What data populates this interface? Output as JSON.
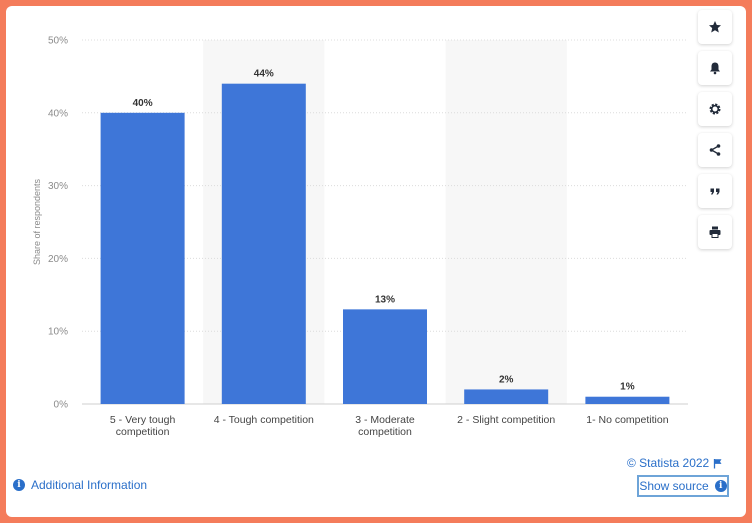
{
  "chart_data": {
    "type": "bar",
    "categories": [
      "5 - Very tough competition",
      "4 - Tough competition",
      "3 - Moderate competition",
      "2 - Slight competition",
      "1- No competition"
    ],
    "category_lines": [
      [
        "5 - Very tough",
        "competition"
      ],
      [
        "4 - Tough competition"
      ],
      [
        "3 - Moderate",
        "competition"
      ],
      [
        "2 - Slight competition"
      ],
      [
        "1- No competition"
      ]
    ],
    "values": [
      40,
      44,
      13,
      2,
      1
    ],
    "data_labels": [
      "40%",
      "44%",
      "13%",
      "2%",
      "1%"
    ],
    "ylabel": "Share of respondents",
    "yticks": [
      0,
      10,
      20,
      30,
      40,
      50
    ],
    "ytick_labels": [
      "0%",
      "10%",
      "20%",
      "30%",
      "40%",
      "50%"
    ],
    "ylim": [
      0,
      50
    ],
    "grid": true,
    "bar_color": "#3e76d8",
    "alt_band_color": "#f7f7f7"
  },
  "toolbar": {
    "items": [
      {
        "name": "star-icon"
      },
      {
        "name": "bell-icon"
      },
      {
        "name": "gear-icon"
      },
      {
        "name": "share-icon"
      },
      {
        "name": "quote-icon"
      },
      {
        "name": "print-icon"
      }
    ]
  },
  "footer": {
    "copyright": "© Statista 2022",
    "additional_info": "Additional Information",
    "show_source": "Show source"
  },
  "colors": {
    "border": "#f47c5b",
    "link": "#2a6fc9"
  }
}
